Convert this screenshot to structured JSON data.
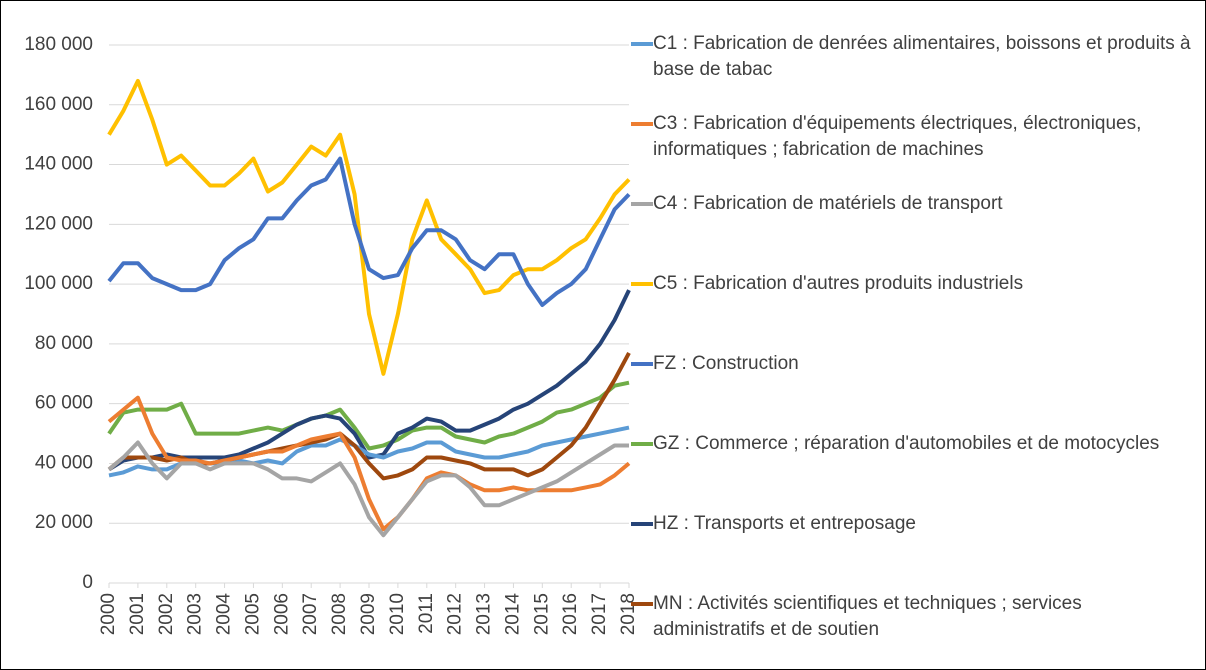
{
  "chart_data": {
    "type": "line",
    "x": [
      2000,
      2000.5,
      2001,
      2001.5,
      2002,
      2002.5,
      2003,
      2003.5,
      2004,
      2004.5,
      2005,
      2005.5,
      2006,
      2006.5,
      2007,
      2007.5,
      2008,
      2008.5,
      2009,
      2009.5,
      2010,
      2010.5,
      2011,
      2011.5,
      2012,
      2012.5,
      2013,
      2013.5,
      2014,
      2014.5,
      2015,
      2015.5,
      2016,
      2016.5,
      2017,
      2017.5,
      2018
    ],
    "xlim": [
      2000,
      2018
    ],
    "xticks": [
      2000,
      2001,
      2002,
      2003,
      2004,
      2005,
      2006,
      2007,
      2008,
      2009,
      2010,
      2011,
      2012,
      2013,
      2014,
      2015,
      2016,
      2017,
      2018
    ],
    "ylim": [
      0,
      180000
    ],
    "yticks": [
      0,
      {
        "value": 20000,
        "label": "20 000"
      },
      {
        "value": 40000,
        "label": "40 000"
      },
      {
        "value": 60000,
        "label": "60 000"
      },
      {
        "value": 80000,
        "label": "80 000"
      },
      {
        "value": 100000,
        "label": "100 000"
      },
      {
        "value": 120000,
        "label": "120 000"
      },
      {
        "value": 140000,
        "label": "140 000"
      },
      {
        "value": 160000,
        "label": "160 000"
      },
      {
        "value": 180000,
        "label": "180 000"
      }
    ],
    "grid": true,
    "legend": "right",
    "series": [
      {
        "name": "C1 : Fabrication de denrées alimentaires, boissons et produits à base de tabac",
        "color": "#5b9bd5",
        "values": [
          36000,
          37000,
          39000,
          38000,
          38000,
          40000,
          40000,
          40000,
          40000,
          41000,
          40000,
          41000,
          40000,
          44000,
          46000,
          46000,
          48000,
          46000,
          43000,
          42000,
          44000,
          45000,
          47000,
          47000,
          44000,
          43000,
          42000,
          42000,
          43000,
          44000,
          46000,
          47000,
          48000,
          49000,
          50000,
          51000,
          52000
        ]
      },
      {
        "name": "C3 : Fabrication d'équipements électriques, électroniques, informatiques ; fabrication de machines",
        "color": "#ed7d31",
        "values": [
          54000,
          58000,
          62000,
          50000,
          42000,
          41000,
          41000,
          40000,
          41000,
          42000,
          43000,
          44000,
          44000,
          46000,
          48000,
          49000,
          50000,
          42000,
          28000,
          18000,
          22000,
          28000,
          35000,
          37000,
          36000,
          33000,
          31000,
          31000,
          32000,
          31000,
          31000,
          31000,
          31000,
          32000,
          33000,
          36000,
          40000
        ]
      },
      {
        "name": "C4 : Fabrication de matériels de transport",
        "color": "#a5a5a5",
        "values": [
          38000,
          42000,
          47000,
          40000,
          35000,
          40000,
          40000,
          38000,
          40000,
          40000,
          40000,
          38000,
          35000,
          35000,
          34000,
          37000,
          40000,
          33000,
          22000,
          16000,
          22000,
          28000,
          34000,
          36000,
          36000,
          32000,
          26000,
          26000,
          28000,
          30000,
          32000,
          34000,
          37000,
          40000,
          43000,
          46000,
          46000
        ]
      },
      {
        "name": "C5 : Fabrication d'autres produits industriels",
        "color": "#ffc000",
        "values": [
          150000,
          158000,
          168000,
          155000,
          140000,
          143000,
          138000,
          133000,
          133000,
          137000,
          142000,
          131000,
          134000,
          140000,
          146000,
          143000,
          150000,
          130000,
          90000,
          70000,
          90000,
          115000,
          128000,
          115000,
          110000,
          105000,
          97000,
          98000,
          103000,
          105000,
          105000,
          108000,
          112000,
          115000,
          122000,
          130000,
          135000
        ]
      },
      {
        "name": "FZ : Construction",
        "color": "#4472c4",
        "values": [
          101000,
          107000,
          107000,
          102000,
          100000,
          98000,
          98000,
          100000,
          108000,
          112000,
          115000,
          122000,
          122000,
          128000,
          133000,
          135000,
          142000,
          120000,
          105000,
          102000,
          103000,
          112000,
          118000,
          118000,
          115000,
          108000,
          105000,
          110000,
          110000,
          100000,
          93000,
          97000,
          100000,
          105000,
          115000,
          125000,
          130000
        ]
      },
      {
        "name": "GZ : Commerce ; réparation d'automobiles et de motocycles",
        "color": "#70ad47",
        "values": [
          50000,
          57000,
          58000,
          58000,
          58000,
          60000,
          50000,
          50000,
          50000,
          50000,
          51000,
          52000,
          51000,
          53000,
          55000,
          56000,
          58000,
          52000,
          45000,
          46000,
          48000,
          51000,
          52000,
          52000,
          49000,
          48000,
          47000,
          49000,
          50000,
          52000,
          54000,
          57000,
          58000,
          60000,
          62000,
          66000,
          67000
        ]
      },
      {
        "name": "HZ : Transports et entreposage",
        "color": "#264478",
        "values": [
          38000,
          41000,
          42000,
          42000,
          43000,
          42000,
          42000,
          42000,
          42000,
          43000,
          45000,
          47000,
          50000,
          53000,
          55000,
          56000,
          55000,
          50000,
          42000,
          43000,
          50000,
          52000,
          55000,
          54000,
          51000,
          51000,
          53000,
          55000,
          58000,
          60000,
          63000,
          66000,
          70000,
          74000,
          80000,
          88000,
          98000
        ]
      },
      {
        "name": "MN : Activités scientifiques et techniques ; services administratifs et de soutien",
        "color": "#9e480e",
        "values": [
          38000,
          42000,
          42000,
          42000,
          41000,
          42000,
          40000,
          40000,
          41000,
          42000,
          43000,
          44000,
          45000,
          46000,
          47000,
          48000,
          50000,
          46000,
          40000,
          35000,
          36000,
          38000,
          42000,
          42000,
          41000,
          40000,
          38000,
          38000,
          38000,
          36000,
          38000,
          42000,
          46000,
          52000,
          60000,
          68000,
          77000
        ]
      }
    ]
  }
}
